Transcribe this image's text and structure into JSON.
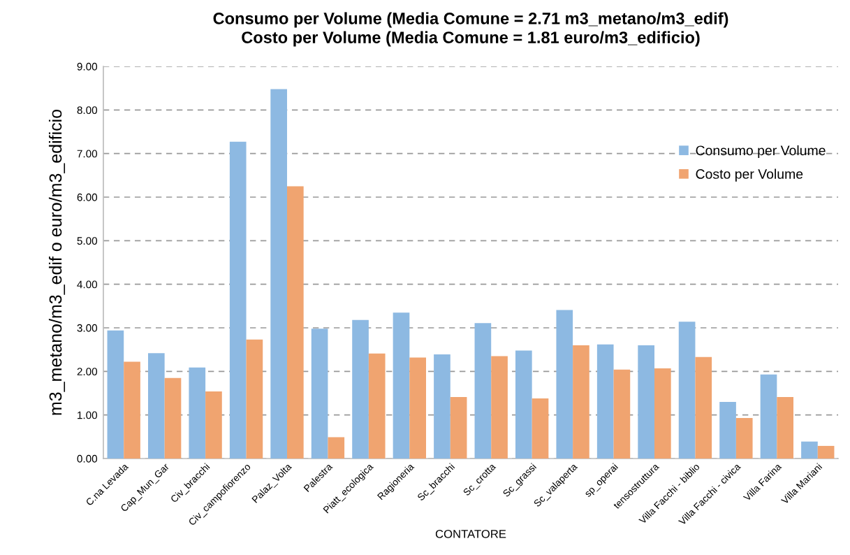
{
  "chart_data": {
    "type": "bar",
    "title": "Consumo per Volume (Media Comune = 2.71 m3_metano/m3_edif)\nCosto per Volume (Media Comune = 1.81 euro/m3_edificio)",
    "xlabel": "CONTATORE",
    "ylabel": "m3_metano/m3_edif o euro/m3_edificio",
    "categories": [
      "C.na Levada",
      "Cap_Mun_Gar",
      "Civ_bracchi",
      "Civ_campofiorenzo",
      "Palaz_Volta",
      "Palestra",
      "Piatt_ecologica",
      "Ragioneria",
      "Sc_bracchi",
      "Sc_crotta",
      "Sc_grassi",
      "Sc_valaperta",
      "sp_operai",
      "tensostruttura",
      "Villa Facchi - biblio",
      "Villa Facchi - civica",
      "Villa Farina",
      "Villa Mariani"
    ],
    "series": [
      {
        "name": "Consumo per Volume",
        "color": "#8db9e2",
        "values": [
          2.94,
          2.42,
          2.09,
          7.27,
          8.48,
          2.98,
          3.18,
          3.35,
          2.39,
          3.11,
          2.48,
          3.41,
          2.62,
          2.6,
          3.14,
          1.3,
          1.93,
          0.39
        ]
      },
      {
        "name": "Costo per Volume",
        "color": "#f0a470",
        "values": [
          2.22,
          1.85,
          1.54,
          2.73,
          6.25,
          0.49,
          2.41,
          2.32,
          1.41,
          2.35,
          1.38,
          2.6,
          2.04,
          2.07,
          2.33,
          0.93,
          1.41,
          0.29
        ]
      }
    ],
    "ylim": [
      0,
      9
    ],
    "yticks": [
      {
        "value": 0,
        "label": "0.00"
      },
      {
        "value": 1,
        "label": "1.00"
      },
      {
        "value": 2,
        "label": "2.00"
      },
      {
        "value": 3,
        "label": "3.00"
      },
      {
        "value": 4,
        "label": "4.00"
      },
      {
        "value": 5,
        "label": "5.00"
      },
      {
        "value": 6,
        "label": "6.00"
      },
      {
        "value": 7,
        "label": "7.00"
      },
      {
        "value": 8,
        "label": "8.00"
      },
      {
        "value": 9,
        "label": "9.00"
      }
    ],
    "grid": "y",
    "legend": "top right"
  }
}
